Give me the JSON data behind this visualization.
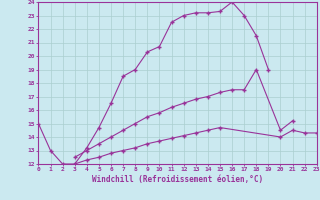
{
  "background_color": "#cbe9f0",
  "line_color": "#993399",
  "grid_color": "#aacfcf",
  "xlabel": "Windchill (Refroidissement éolien,°C)",
  "xmin": 0,
  "xmax": 23,
  "ymin": 12,
  "ymax": 24,
  "line1_x": [
    0,
    1,
    2,
    3,
    4,
    5,
    6,
    7,
    8,
    9,
    10,
    11,
    12,
    13,
    14,
    15,
    16,
    17,
    18,
    19
  ],
  "line1_y": [
    15,
    13,
    12,
    12,
    13.2,
    14.7,
    16.5,
    18.5,
    19.0,
    20.3,
    20.7,
    22.5,
    23.0,
    23.2,
    23.2,
    23.3,
    24.0,
    23.0,
    21.5,
    19.0
  ],
  "line2_x": [
    3,
    4,
    5,
    6,
    7,
    8,
    9,
    10,
    11,
    12,
    13,
    14,
    15,
    16,
    17,
    18,
    20,
    21
  ],
  "line2_y": [
    12.5,
    13.0,
    13.5,
    14.0,
    14.5,
    15.0,
    15.5,
    15.8,
    16.2,
    16.5,
    16.8,
    17.0,
    17.3,
    17.5,
    17.5,
    19.0,
    14.5,
    15.2
  ],
  "line3_x": [
    3,
    4,
    5,
    6,
    7,
    8,
    9,
    10,
    11,
    12,
    13,
    14,
    15,
    20,
    21,
    22,
    23
  ],
  "line3_y": [
    12.0,
    12.3,
    12.5,
    12.8,
    13.0,
    13.2,
    13.5,
    13.7,
    13.9,
    14.1,
    14.3,
    14.5,
    14.7,
    14.0,
    14.5,
    14.3,
    14.3
  ]
}
